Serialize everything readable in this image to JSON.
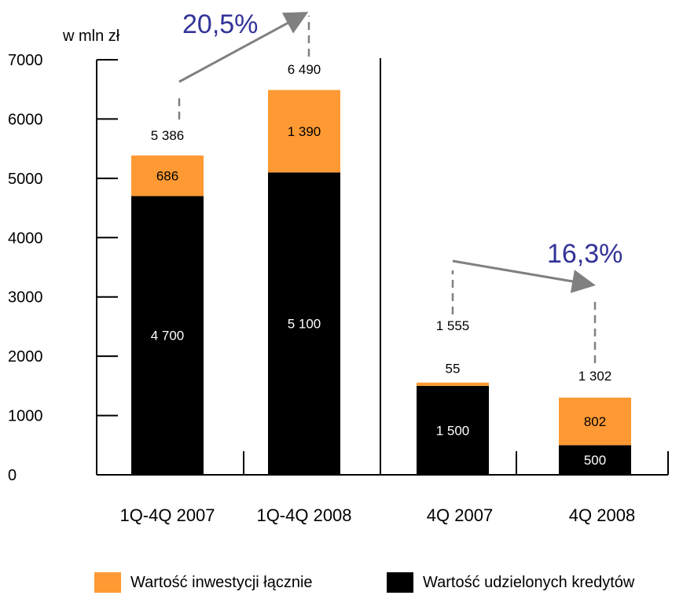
{
  "chart_data": {
    "type": "bar",
    "stacked": true,
    "ylabel": "w mln zł",
    "ylim": [
      0,
      7000
    ],
    "yticks": [
      "0",
      "1000",
      "2000",
      "3000",
      "4000",
      "5000",
      "6000",
      "7000"
    ],
    "categories": [
      "1Q-4Q 2007",
      "1Q-4Q 2008",
      "4Q 2007",
      "4Q 2008"
    ],
    "series": [
      {
        "name": "Wartość udzielonych kredytów",
        "color": "#000000",
        "values": [
          4700,
          5100,
          1500,
          500
        ],
        "labels": [
          "4 700",
          "5 100",
          "1 500",
          "500"
        ]
      },
      {
        "name": "Wartość inwestycji łącznie",
        "color": "#ff9933",
        "values": [
          686,
          1390,
          55,
          802
        ],
        "labels": [
          "686",
          "1 390",
          "55",
          "802"
        ]
      }
    ],
    "totals": [
      5386,
      6490,
      1555,
      1302
    ],
    "total_labels": [
      "5 386",
      "6 490",
      "1 555",
      "1 302"
    ],
    "growth": [
      {
        "label": "20,5%",
        "from": 0,
        "to": 1
      },
      {
        "label": "16,3%",
        "from": 2,
        "to": 3
      }
    ],
    "legend": {
      "position": "bottom",
      "items": [
        "Wartość inwestycji łącznie",
        "Wartość udzielonych kredytów"
      ]
    }
  }
}
